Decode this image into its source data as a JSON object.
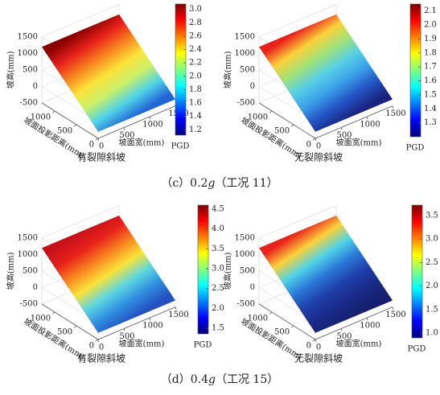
{
  "panels": [
    {
      "name": "有裂隙斜坡",
      "z_label": "坡高(mm)",
      "width_label": "坡面宽(mm)",
      "depth_label": "坡面投影距离(mm)",
      "z_lim": [
        -500,
        1500
      ],
      "z_ticks": [
        -500,
        0,
        500,
        1000,
        1500
      ],
      "width_lim": [
        0,
        1500
      ],
      "width_ticks": [
        0,
        500,
        1000,
        1500
      ],
      "depth_lim": [
        0,
        1300
      ],
      "depth_ticks": [
        0,
        500,
        1000
      ],
      "surface": {
        "z_back": 1200,
        "z_front": -300
      },
      "surface_colors": [
        "#8b0000",
        "#e8221b",
        "#f7851f",
        "#fbe33a",
        "#c9f06a",
        "#4fd3e8",
        "#2266d6"
      ],
      "colorbar": {
        "label": "PGD",
        "lim": [
          1.12,
          3.08
        ],
        "ticks": [
          1.2,
          1.4,
          1.6,
          1.8,
          {
            "value": 2,
            "label": "2.0"
          },
          2.2,
          2.4,
          2.6,
          2.8,
          {
            "value": 3,
            "label": "3.0"
          }
        ]
      }
    },
    {
      "name": "无裂隙斜坡",
      "z_label": "坡高(mm)",
      "width_label": "坡面宽(mm)",
      "depth_label": "坡面投影距离(mm)",
      "z_lim": [
        -500,
        1500
      ],
      "z_ticks": [
        -500,
        0,
        500,
        1000,
        1500
      ],
      "width_lim": [
        0,
        1500
      ],
      "width_ticks": [
        0,
        500,
        1000,
        1500
      ],
      "depth_lim": [
        0,
        1300
      ],
      "depth_ticks": [
        0,
        500,
        1000
      ],
      "surface": {
        "z_back": 1200,
        "z_front": -300
      },
      "surface_colors": [
        "#e8221b",
        "#fbd23a",
        "#9fe27a",
        "#56cfe6",
        "#3a9fe8",
        "#2353c4",
        "#1a237e"
      ],
      "colorbar": {
        "label": "PGD",
        "lim": [
          1.2,
          2.15
        ],
        "ticks": [
          1.3,
          1.4,
          1.5,
          1.6,
          1.7,
          1.8,
          1.9,
          {
            "value": 2,
            "label": "2.0"
          },
          2.1
        ]
      }
    },
    {
      "name": "有裂隙斜坡",
      "z_label": "坡高(mm)",
      "width_label": "坡面宽(mm)",
      "depth_label": "坡面投影距离(mm)",
      "z_lim": [
        -500,
        1500
      ],
      "z_ticks": [
        -500,
        0,
        500,
        1000,
        1500
      ],
      "width_lim": [
        0,
        1500
      ],
      "width_ticks": [
        0,
        500,
        1000,
        1500
      ],
      "depth_lim": [
        0,
        1300
      ],
      "depth_ticks": [
        0,
        500,
        1000
      ],
      "surface": {
        "z_back": 1200,
        "z_front": -300
      },
      "surface_colors": [
        "#c8101a",
        "#e8221b",
        "#f7851f",
        "#fbe33a",
        "#5fd8e0",
        "#2f8fe0",
        "#2450c0"
      ],
      "colorbar": {
        "label": "PGD",
        "lim": [
          1.36,
          4.6
        ],
        "ticks": [
          1.5,
          {
            "value": 2,
            "label": "2.0"
          },
          2.5,
          {
            "value": 3,
            "label": "3.0"
          },
          3.5,
          {
            "value": 4,
            "label": "4.0"
          },
          4.5
        ]
      }
    },
    {
      "name": "无裂隙斜坡",
      "z_label": "坡高(mm)",
      "width_label": "坡面宽(mm)",
      "depth_label": "坡面投影距离(mm)",
      "z_lim": [
        -500,
        1500
      ],
      "z_ticks": [
        -500,
        0,
        500,
        1000,
        1500
      ],
      "width_lim": [
        0,
        1500
      ],
      "width_ticks": [
        0,
        500,
        1000,
        1500
      ],
      "depth_lim": [
        0,
        1300
      ],
      "depth_ticks": [
        0,
        500,
        1000
      ],
      "surface": {
        "z_back": 1200,
        "z_front": -300
      },
      "surface_colors": [
        "#e8221b",
        "#fbd23a",
        "#4fd3e8",
        "#2a78d8",
        "#1f3fa8",
        "#1a2a8a",
        "#16206e"
      ],
      "colorbar": {
        "label": "PGD",
        "lim": [
          0.9,
          3.72
        ],
        "ticks": [
          {
            "value": 1,
            "label": "1.0"
          },
          1.5,
          {
            "value": 2,
            "label": "2.0"
          },
          2.5,
          {
            "value": 3,
            "label": "3.0"
          },
          3.5
        ]
      }
    }
  ],
  "captions": [
    {
      "prefix": "（c）0.2",
      "italic": "g",
      "suffix": "（工况 11）"
    },
    {
      "prefix": "（d）0.4",
      "italic": "g",
      "suffix": "（工况 15）"
    }
  ]
}
